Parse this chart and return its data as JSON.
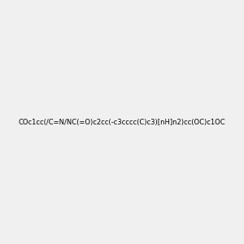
{
  "smiles": "COc1cc(/C=N/NC(=O)c2cc(-c3cccc(C)c3)[nH]n2)cc(OC)c1OC",
  "title": "",
  "background_color": "#f0f0f0",
  "figsize": [
    3.0,
    3.0
  ],
  "dpi": 100
}
